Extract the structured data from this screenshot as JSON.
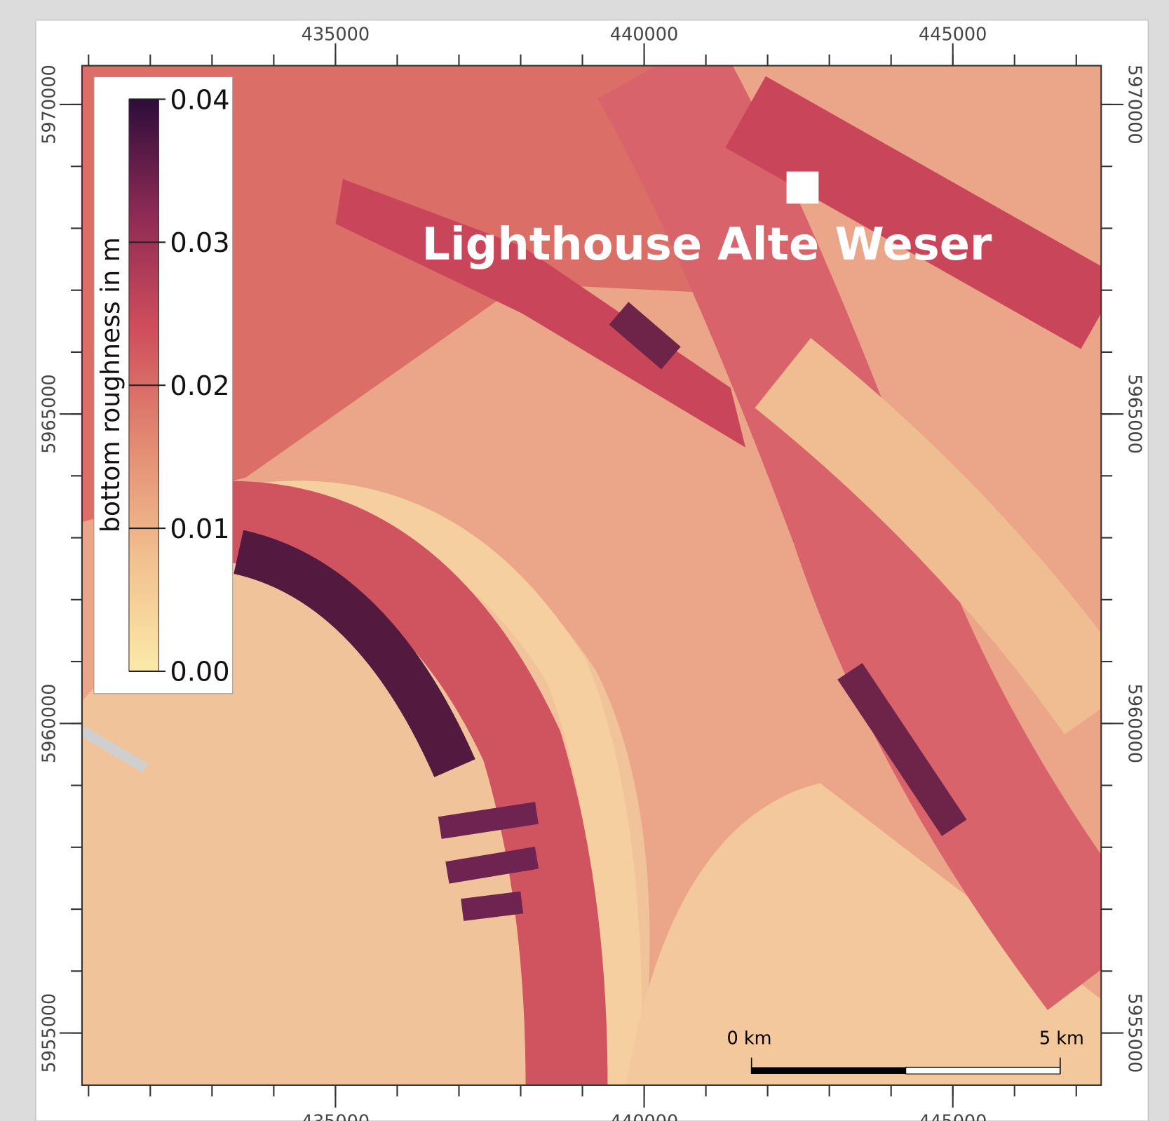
{
  "map": {
    "title": "Lighthouse Alte Weser",
    "xlim": [
      430894,
      447403
    ],
    "ylim": [
      5954157,
      5970627
    ],
    "xticks": [
      435000,
      440000,
      445000
    ],
    "yticks": [
      5955000,
      5960000,
      5965000,
      5970000
    ],
    "xminorticks": [
      431000,
      432000,
      433000,
      434000,
      435000,
      436000,
      437000,
      438000,
      439000,
      440000,
      441000,
      442000,
      443000,
      444000,
      445000,
      446000,
      447000
    ],
    "yminorticks": [
      5955000,
      5956000,
      5957000,
      5958000,
      5959000,
      5960000,
      5961000,
      5962000,
      5963000,
      5964000,
      5965000,
      5966000,
      5967000,
      5968000,
      5969000,
      5970000
    ],
    "colorbar": {
      "label": "bottom roughness in m",
      "lim": [
        0,
        0.04
      ],
      "ticks": [
        {
          "value": 0,
          "label": "0.00"
        },
        0.01,
        0.02,
        0.03,
        0.04
      ],
      "colors": [
        "#fbe9a8",
        "#f2bf8f",
        "#e38a72",
        "#cf4d5c",
        "#8e2a55",
        "#2d0c3a"
      ]
    },
    "scalebar": {
      "ticks": [
        {
          "value": 0,
          "label": "0 km"
        },
        {
          "value": 5000,
          "label": "5 km"
        }
      ]
    }
  }
}
